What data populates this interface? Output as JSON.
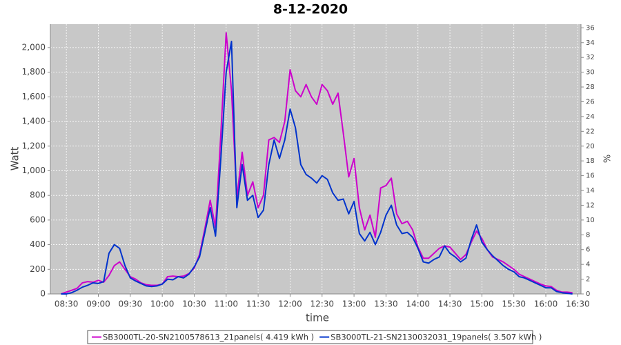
{
  "chart_data": {
    "type": "line",
    "title": "8-12-2020",
    "xlabel": "time",
    "ylabel": "Watt",
    "y2label": "%",
    "x": [
      505,
      510,
      515,
      520,
      525,
      530,
      535,
      540,
      545,
      550,
      555,
      560,
      565,
      570,
      575,
      580,
      585,
      590,
      595,
      600,
      605,
      610,
      615,
      620,
      625,
      630,
      635,
      640,
      645,
      650,
      655,
      660,
      665,
      670,
      675,
      680,
      685,
      690,
      695,
      700,
      705,
      710,
      715,
      720,
      725,
      730,
      735,
      740,
      745,
      750,
      755,
      760,
      765,
      770,
      775,
      780,
      785,
      790,
      795,
      800,
      805,
      810,
      815,
      820,
      825,
      830,
      835,
      840,
      845,
      850,
      855,
      860,
      865,
      870,
      875,
      880,
      885,
      890,
      895,
      900,
      905,
      910,
      915,
      920,
      925,
      930,
      935,
      940,
      945,
      950,
      955,
      960,
      965,
      970,
      975,
      980,
      985
    ],
    "series": [
      {
        "name": "SB3000TL-20-SN2100578613_21panels( 4.419 kWh )",
        "color": "#cc00cc",
        "values": [
          0,
          15,
          30,
          45,
          90,
          100,
          95,
          110,
          95,
          150,
          230,
          260,
          200,
          140,
          120,
          90,
          75,
          70,
          70,
          80,
          140,
          145,
          140,
          145,
          165,
          210,
          320,
          530,
          760,
          540,
          1300,
          2120,
          1650,
          780,
          1150,
          800,
          910,
          700,
          800,
          1250,
          1270,
          1230,
          1400,
          1820,
          1650,
          1600,
          1700,
          1600,
          1540,
          1700,
          1650,
          1540,
          1630,
          1300,
          950,
          1100,
          700,
          520,
          640,
          460,
          860,
          880,
          940,
          650,
          570,
          590,
          520,
          380,
          290,
          290,
          330,
          370,
          390,
          380,
          330,
          280,
          320,
          420,
          510,
          450,
          360,
          300,
          280,
          260,
          230,
          200,
          160,
          140,
          120,
          100,
          80,
          65,
          60,
          30,
          15,
          15,
          10
        ]
      },
      {
        "name": "SB3000TL-21-SN2130032031_19panels( 3.507 kWh )",
        "color": "#0033cc",
        "values": [
          0,
          0,
          10,
          30,
          55,
          70,
          90,
          85,
          100,
          330,
          400,
          370,
          230,
          130,
          105,
          85,
          65,
          60,
          65,
          80,
          120,
          115,
          140,
          130,
          160,
          220,
          300,
          500,
          700,
          470,
          1100,
          1800,
          2050,
          700,
          1050,
          760,
          800,
          620,
          680,
          1050,
          1250,
          1100,
          1250,
          1500,
          1350,
          1050,
          970,
          940,
          900,
          960,
          930,
          820,
          760,
          770,
          650,
          750,
          490,
          430,
          500,
          400,
          500,
          640,
          720,
          560,
          490,
          500,
          460,
          370,
          260,
          250,
          280,
          300,
          390,
          330,
          300,
          260,
          290,
          440,
          560,
          420,
          360,
          310,
          270,
          230,
          200,
          180,
          140,
          130,
          110,
          90,
          70,
          50,
          50,
          20,
          10,
          5,
          0
        ]
      }
    ],
    "xlim": [
      495,
      993
    ],
    "xticks": [
      {
        "value": 510,
        "label": "08:30"
      },
      {
        "value": 540,
        "label": "09:00"
      },
      {
        "value": 570,
        "label": "09:30"
      },
      {
        "value": 600,
        "label": "10:00"
      },
      {
        "value": 630,
        "label": "10:30"
      },
      {
        "value": 660,
        "label": "11:00"
      },
      {
        "value": 690,
        "label": "11:30"
      },
      {
        "value": 720,
        "label": "12:00"
      },
      {
        "value": 750,
        "label": "12:30"
      },
      {
        "value": 780,
        "label": "13:00"
      },
      {
        "value": 810,
        "label": "13:30"
      },
      {
        "value": 840,
        "label": "14:00"
      },
      {
        "value": 870,
        "label": "14:30"
      },
      {
        "value": 900,
        "label": "15:00"
      },
      {
        "value": 930,
        "label": "15:30"
      },
      {
        "value": 960,
        "label": "16:00"
      },
      {
        "value": 990,
        "label": "16:30"
      }
    ],
    "ylim": [
      0,
      2190
    ],
    "yticks": [
      0,
      200,
      400,
      600,
      800,
      {
        "value": 1000,
        "label": "1,000"
      },
      {
        "value": 1200,
        "label": "1,200"
      },
      {
        "value": 1400,
        "label": "1,400"
      },
      {
        "value": 1600,
        "label": "1,600"
      },
      {
        "value": 1800,
        "label": "1,800"
      },
      {
        "value": 2000,
        "label": "2,000"
      }
    ],
    "y2lim": [
      0,
      36.5
    ],
    "y2ticks": [
      0,
      2,
      4,
      6,
      8,
      10,
      12,
      14,
      16,
      18,
      20,
      22,
      24,
      26,
      28,
      30,
      32,
      34,
      36
    ],
    "grid": true,
    "legend": "bottom"
  }
}
